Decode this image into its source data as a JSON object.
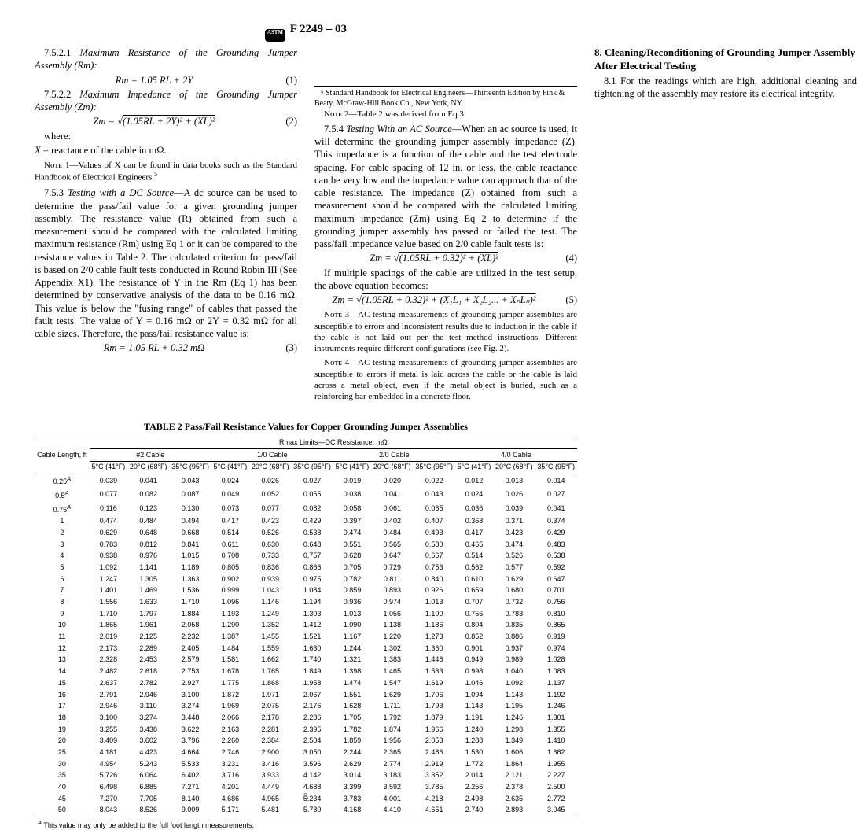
{
  "header": {
    "standard_no": "F 2249 – 03"
  },
  "left_col": {
    "sec_7_5_2_1_num": "7.5.2.1",
    "sec_7_5_2_1_title": "Maximum Resistance of the Grounding Jumper Assembly (Rm):",
    "eq1_body": "Rm = 1.05 RL + 2Y",
    "eq1_num": "(1)",
    "sec_7_5_2_2_num": "7.5.2.2",
    "sec_7_5_2_2_title": "Maximum Impedance of the Grounding Jumper Assembly (Zm):",
    "eq2_body_pre": "Zm = √",
    "eq2_body_rad": "(1.05RL + 2Y)² + (XL)²",
    "eq2_num": "(2)",
    "where_label": "where:",
    "where_x": "X  = reactance of the cable in mΩ.",
    "note1": "Nᴏᴛᴇ 1—Values of X can be found in data books such as the Standard Handbook of Electrical Engineers.",
    "note1_fn": "5",
    "sec_7_5_3_num": "7.5.3",
    "sec_7_5_3_title": "Testing with a DC Source",
    "sec_7_5_3_body": "—A dc source can be used to determine the pass/fail value for a given grounding jumper assembly. The resistance value (R) obtained from such a measurement should be compared with the calculated limiting maximum resistance (Rm) using Eq 1 or it can be compared to the resistance values in Table 2. The calculated criterion for pass/fail is based on 2/0 cable fault tests conducted in Round Robin III (See Appendix X1). The resistance of Y in the Rm (Eq 1) has been determined by conservative analysis of the data to be 0.16 mΩ. This value is below the \"fusing range\" of cables that passed the fault tests. The value of Y = 0.16 mΩ or 2Y = 0.32 mΩ for all cable sizes. Therefore, the pass/fail resistance value is:",
    "eq3_body": "Rm = 1.05 RL + 0.32 mΩ",
    "eq3_num": "(3)",
    "footnote5": "⁵ Standard Handbook for Electrical Engineers—Thirteenth Edition by Fink & Beaty, McGraw-Hill Book Co., New York, NY."
  },
  "right_col": {
    "note2": "Nᴏᴛᴇ 2—Table 2 was derived from Eq 3.",
    "sec_7_5_4_num": "7.5.4",
    "sec_7_5_4_title": "Testing With an AC Source",
    "sec_7_5_4_body": "—When an ac source is used, it will determine the grounding jumper assembly impedance (Z). This impedance is a function of the cable and the test electrode spacing. For cable spacing of 12 in. or less, the cable reactance can be very low and the impedance value can approach that of the cable resistance. The impedance (Z) obtained from such a measurement should be compared with the calculated limiting maximum impedance (Zm) using Eq 2 to determine if the grounding jumper assembly has passed or failed the test. The pass/fail impedance value based on 2/0 cable fault tests is:",
    "eq4_body_pre": "Zm = √",
    "eq4_body_rad": "(1.05RL + 0.32)² + (XL)²",
    "eq4_num": "(4)",
    "multi_spacing": "If multiple spacings of the cable are utilized in the test setup, the above equation becomes:",
    "eq5_body_pre": "Zm = √",
    "eq5_body_rad": "(1.05RL + 0.32)² + (X₁L₁ + X₂L₂... + XₙLₙ)²",
    "eq5_num": "(5)",
    "note3": "Nᴏᴛᴇ 3—AC testing measurements of grounding jumper assemblies are susceptible to errors and inconsistent results due to induction in the cable if the cable is not laid out per the test method instructions. Different instruments require different configurations (see Fig. 2).",
    "note4": "Nᴏᴛᴇ 4—AC testing measurements of grounding jumper assemblies are susceptible to errors if metal is laid across the cable or the cable is laid across a metal object, even if the metal object is buried, such as a reinforcing bar embedded in a concrete floor.",
    "sec8_heading": "8. Cleaning/Reconditioning of Grounding Jumper Assembly After Electrical Testing",
    "sec8_1": "8.1 For the readings which are high, additional cleaning and tightening of the assembly may restore its electrical integrity."
  },
  "table2": {
    "caption": "TABLE 2  Pass/Fail Resistance Values for Copper Grounding Jumper Assemblies",
    "rmax_header": "Rmax Limits—DC Resistance, mΩ",
    "row_header": "Cable Length, ft",
    "groups": [
      "#2 Cable",
      "1/0 Cable",
      "2/0 Cable",
      "4/0 Cable"
    ],
    "temp_headers": [
      "5°C (41°F)",
      "20°C (68°F)",
      "35°C (95°F)",
      "5°C (41°F)",
      "20°C (68°F)",
      "35°C (95°F)",
      "5°C (41°F)",
      "20°C (68°F)",
      "35°C (95°F)",
      "5°C (41°F)",
      "20°C (68°F)",
      "35°C (95°F)"
    ],
    "rows": [
      {
        "len": "0.25",
        "fn": "A",
        "v": [
          "0.039",
          "0.041",
          "0.043",
          "0.024",
          "0.026",
          "0.027",
          "0.019",
          "0.020",
          "0.022",
          "0.012",
          "0.013",
          "0.014"
        ]
      },
      {
        "len": "0.5",
        "fn": "A",
        "v": [
          "0.077",
          "0.082",
          "0.087",
          "0.049",
          "0.052",
          "0.055",
          "0.038",
          "0.041",
          "0.043",
          "0.024",
          "0.026",
          "0.027"
        ]
      },
      {
        "len": "0.75",
        "fn": "A",
        "v": [
          "0.116",
          "0.123",
          "0.130",
          "0.073",
          "0.077",
          "0.082",
          "0.058",
          "0.061",
          "0.065",
          "0.036",
          "0.039",
          "0.041"
        ]
      },
      {
        "len": "1",
        "v": [
          "0.474",
          "0.484",
          "0.494",
          "0.417",
          "0.423",
          "0.429",
          "0.397",
          "0.402",
          "0.407",
          "0.368",
          "0.371",
          "0.374"
        ]
      },
      {
        "len": "2",
        "v": [
          "0.629",
          "0.648",
          "0.668",
          "0.514",
          "0.526",
          "0.538",
          "0.474",
          "0.484",
          "0.493",
          "0.417",
          "0.423",
          "0.429"
        ]
      },
      {
        "len": "3",
        "v": [
          "0.783",
          "0.812",
          "0.841",
          "0.611",
          "0.630",
          "0.648",
          "0.551",
          "0.565",
          "0.580",
          "0.465",
          "0.474",
          "0.483"
        ]
      },
      {
        "len": "4",
        "v": [
          "0.938",
          "0.976",
          "1.015",
          "0.708",
          "0.733",
          "0.757",
          "0.628",
          "0.647",
          "0.667",
          "0.514",
          "0.526",
          "0.538"
        ]
      },
      {
        "len": "5",
        "v": [
          "1.092",
          "1.141",
          "1.189",
          "0.805",
          "0.836",
          "0.866",
          "0.705",
          "0.729",
          "0.753",
          "0.562",
          "0.577",
          "0.592"
        ]
      },
      {
        "len": "6",
        "v": [
          "1.247",
          "1.305",
          "1.363",
          "0.902",
          "0.939",
          "0.975",
          "0.782",
          "0.811",
          "0.840",
          "0.610",
          "0.629",
          "0.647"
        ]
      },
      {
        "len": "7",
        "v": [
          "1.401",
          "1.469",
          "1.536",
          "0.999",
          "1.043",
          "1.084",
          "0.859",
          "0.893",
          "0.926",
          "0.659",
          "0.680",
          "0.701"
        ]
      },
      {
        "len": "8",
        "v": [
          "1.556",
          "1.633",
          "1.710",
          "1.096",
          "1.146",
          "1.194",
          "0.936",
          "0.974",
          "1.013",
          "0.707",
          "0.732",
          "0.756"
        ]
      },
      {
        "len": "9",
        "v": [
          "1.710",
          "1.797",
          "1.884",
          "1.193",
          "1.249",
          "1.303",
          "1.013",
          "1.056",
          "1.100",
          "0.756",
          "0.783",
          "0.810"
        ]
      },
      {
        "len": "10",
        "v": [
          "1.865",
          "1.961",
          "2.058",
          "1.290",
          "1.352",
          "1.412",
          "1.090",
          "1.138",
          "1.186",
          "0.804",
          "0.835",
          "0.865"
        ]
      },
      {
        "len": "11",
        "v": [
          "2.019",
          "2.125",
          "2.232",
          "1.387",
          "1.455",
          "1.521",
          "1.167",
          "1.220",
          "1.273",
          "0.852",
          "0.886",
          "0.919"
        ]
      },
      {
        "len": "12",
        "v": [
          "2.173",
          "2.289",
          "2.405",
          "1.484",
          "1.559",
          "1.630",
          "1.244",
          "1.302",
          "1.360",
          "0.901",
          "0.937",
          "0.974"
        ]
      },
      {
        "len": "13",
        "v": [
          "2.328",
          "2.453",
          "2.579",
          "1.581",
          "1.662",
          "1.740",
          "1.321",
          "1.383",
          "1.446",
          "0.949",
          "0.989",
          "1.028"
        ]
      },
      {
        "len": "14",
        "v": [
          "2.482",
          "2.618",
          "2.753",
          "1.678",
          "1.765",
          "1.849",
          "1.398",
          "1.465",
          "1.533",
          "0.998",
          "1.040",
          "1.083"
        ]
      },
      {
        "len": "15",
        "v": [
          "2.637",
          "2.782",
          "2.927",
          "1.775",
          "1.868",
          "1.958",
          "1.474",
          "1.547",
          "1.619",
          "1.046",
          "1.092",
          "1.137"
        ]
      },
      {
        "len": "16",
        "v": [
          "2.791",
          "2.946",
          "3.100",
          "1.872",
          "1.971",
          "2.067",
          "1.551",
          "1.629",
          "1.706",
          "1.094",
          "1.143",
          "1.192"
        ]
      },
      {
        "len": "17",
        "v": [
          "2.946",
          "3.110",
          "3.274",
          "1.969",
          "2.075",
          "2.176",
          "1.628",
          "1.711",
          "1.793",
          "1.143",
          "1.195",
          "1.246"
        ]
      },
      {
        "len": "18",
        "v": [
          "3.100",
          "3.274",
          "3.448",
          "2.066",
          "2.178",
          "2.286",
          "1.705",
          "1.792",
          "1.879",
          "1.191",
          "1.246",
          "1.301"
        ]
      },
      {
        "len": "19",
        "v": [
          "3.255",
          "3.438",
          "3.622",
          "2.163",
          "2.281",
          "2.395",
          "1.782",
          "1.874",
          "1.966",
          "1.240",
          "1.298",
          "1.355"
        ]
      },
      {
        "len": "20",
        "v": [
          "3.409",
          "3.602",
          "3.796",
          "2.260",
          "2.384",
          "2.504",
          "1.859",
          "1.956",
          "2.053",
          "1.288",
          "1.349",
          "1.410"
        ]
      },
      {
        "len": "25",
        "v": [
          "4.181",
          "4.423",
          "4.664",
          "2.746",
          "2.900",
          "3.050",
          "2.244",
          "2.365",
          "2.486",
          "1.530",
          "1.606",
          "1.682"
        ]
      },
      {
        "len": "30",
        "v": [
          "4.954",
          "5.243",
          "5.533",
          "3.231",
          "3.416",
          "3.596",
          "2.629",
          "2.774",
          "2.919",
          "1.772",
          "1.864",
          "1.955"
        ]
      },
      {
        "len": "35",
        "v": [
          "5.726",
          "6.064",
          "6.402",
          "3.716",
          "3.933",
          "4.142",
          "3.014",
          "3.183",
          "3.352",
          "2.014",
          "2.121",
          "2.227"
        ]
      },
      {
        "len": "40",
        "v": [
          "6.498",
          "6.885",
          "7.271",
          "4.201",
          "4.449",
          "4.688",
          "3.399",
          "3.592",
          "3.785",
          "2.256",
          "2.378",
          "2.500"
        ]
      },
      {
        "len": "45",
        "v": [
          "7.270",
          "7.705",
          "8.140",
          "4.686",
          "4.965",
          "5.234",
          "3.783",
          "4.001",
          "4.218",
          "2.498",
          "2.635",
          "2.772"
        ]
      },
      {
        "len": "50",
        "v": [
          "8.043",
          "8.526",
          "9.009",
          "5.171",
          "5.481",
          "5.780",
          "4.168",
          "4.410",
          "4.651",
          "2.740",
          "2.893",
          "3.045"
        ]
      }
    ],
    "footnote_a": "This value may only be added to the full foot length measurements.",
    "footnote_a_marker": "A"
  },
  "page_number": "3"
}
